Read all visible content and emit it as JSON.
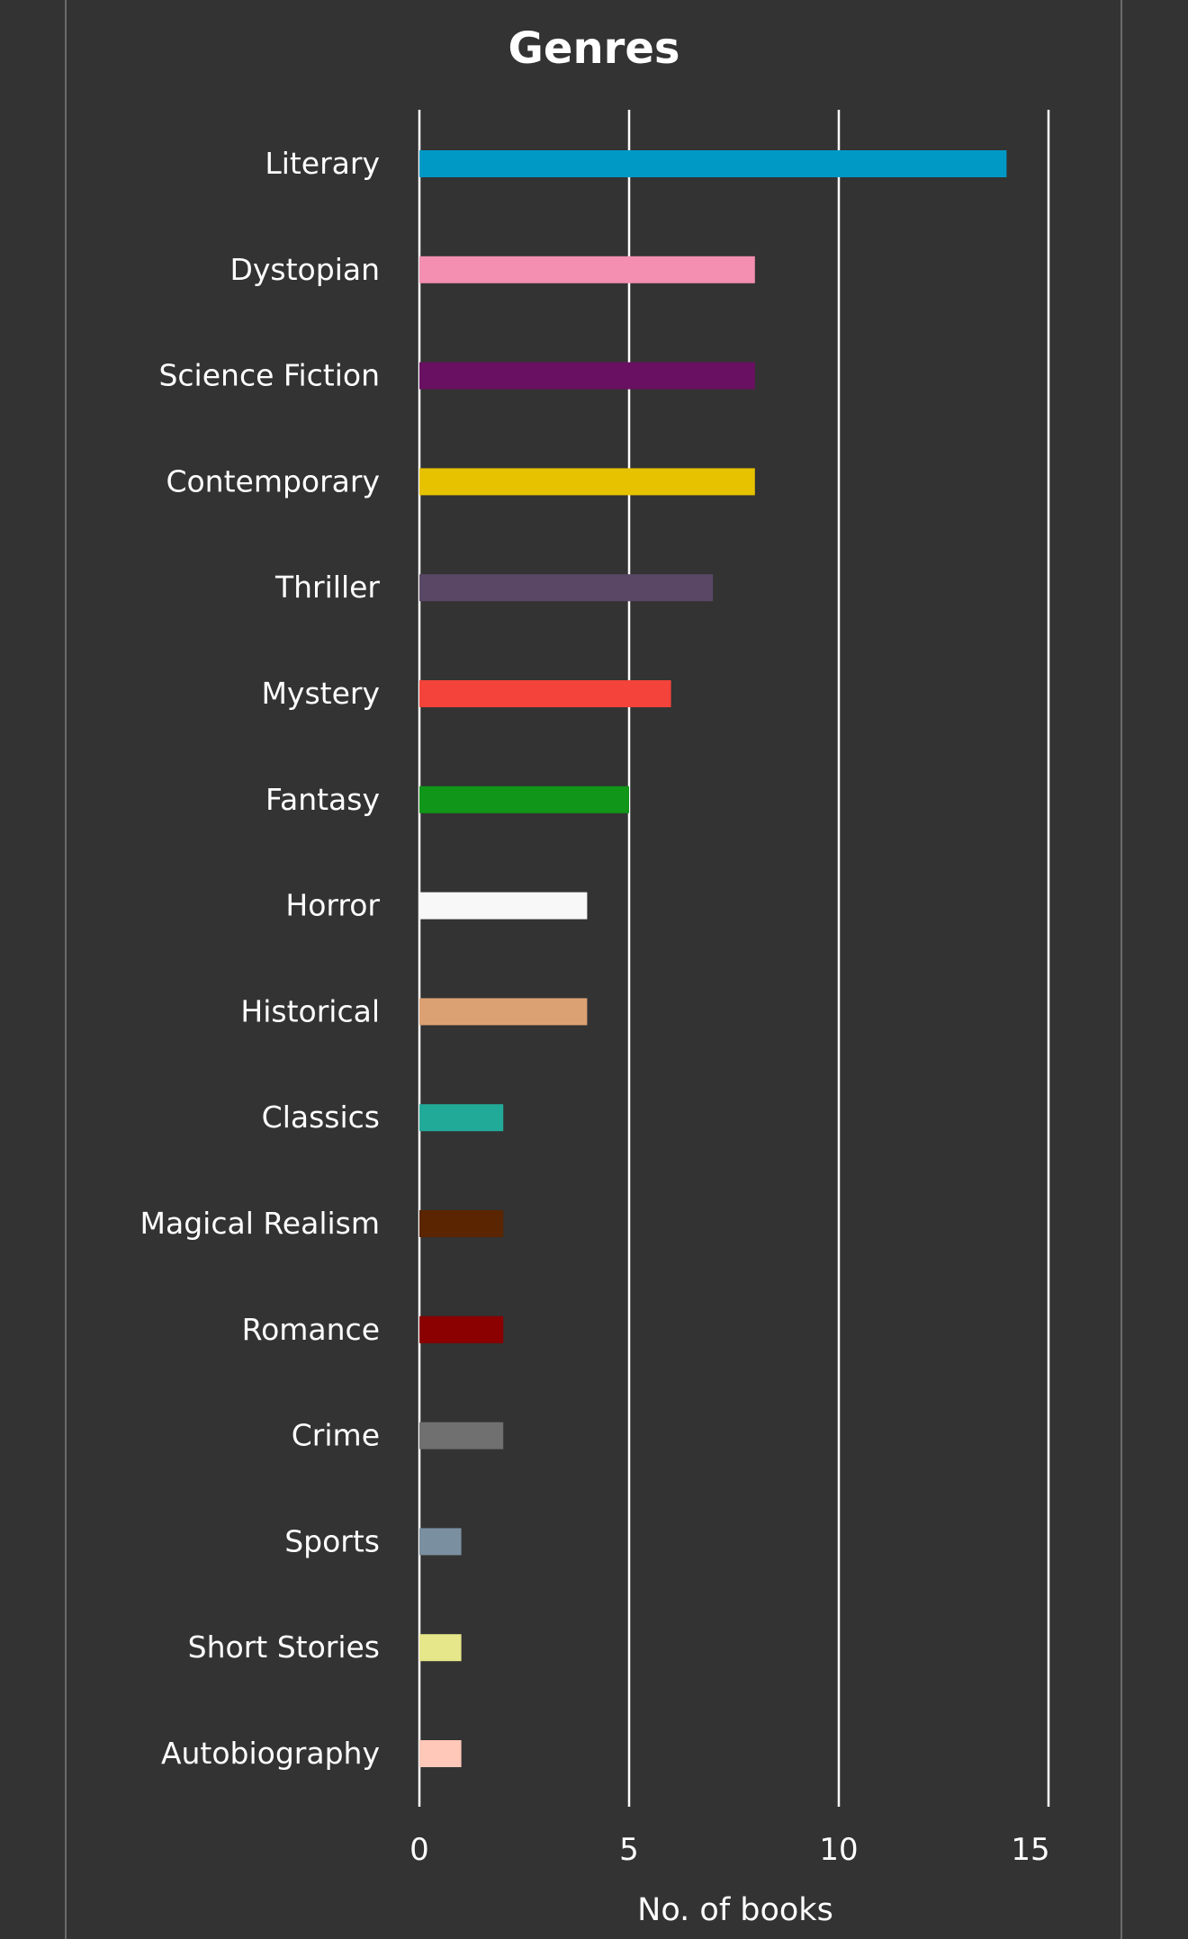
{
  "chart_data": {
    "type": "bar",
    "orientation": "horizontal",
    "title": "Genres",
    "xlabel": "No. of books",
    "ylabel": "",
    "xlim": [
      0,
      15
    ],
    "x_ticks": [
      0,
      5,
      10,
      15
    ],
    "grid": true,
    "categories": [
      "Literary",
      "Dystopian",
      "Science Fiction",
      "Contemporary",
      "Thriller",
      "Mystery",
      "Fantasy",
      "Horror",
      "Historical",
      "Classics",
      "Magical Realism",
      "Romance",
      "Crime",
      "Sports",
      "Short Stories",
      "Autobiography"
    ],
    "values": [
      14,
      8,
      8,
      8,
      7,
      6,
      5,
      4,
      4,
      2,
      2,
      2,
      2,
      1,
      1,
      1
    ],
    "colors": [
      "#0099c6",
      "#f48fb1",
      "#6a1062",
      "#e6c200",
      "#5a4765",
      "#f4433a",
      "#109618",
      "#f8f8f8",
      "#dca173",
      "#22aa99",
      "#5a2500",
      "#8b0000",
      "#707070",
      "#7a8fa0",
      "#e6e68a",
      "#ffc8b8"
    ]
  }
}
